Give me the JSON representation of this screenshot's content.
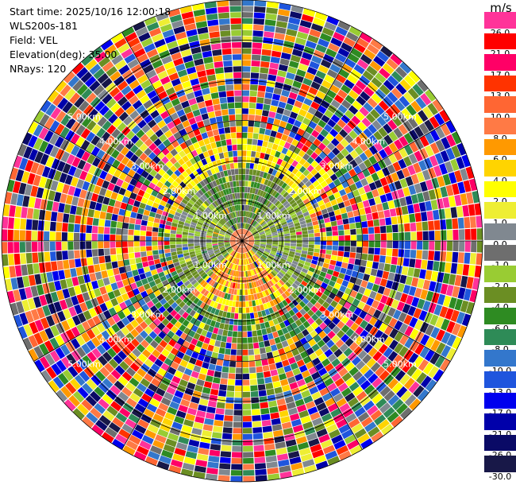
{
  "info": {
    "start_time": "Start time: 2025/10/16 12:00:18",
    "instrument": "WLS200s-181",
    "field": "Field: VEL",
    "elevation": "Elevation(deg): 35.00",
    "nrays": "NRays: 120"
  },
  "colorbar": {
    "unit": "m/s",
    "levels": [
      {
        "label": "26.0",
        "color": "#ff3399"
      },
      {
        "label": "21.0",
        "color": "#ff0000"
      },
      {
        "label": "17.0",
        "color": "#ff0066"
      },
      {
        "label": "13.0",
        "color": "#ff3300"
      },
      {
        "label": "10.0",
        "color": "#ff6633"
      },
      {
        "label": "8.0",
        "color": "#ff7a45"
      },
      {
        "label": "6.0",
        "color": "#ff9900"
      },
      {
        "label": "4.0",
        "color": "#ffd400"
      },
      {
        "label": "2.0",
        "color": "#ffff00"
      },
      {
        "label": "1.0",
        "color": "#eeee33"
      },
      {
        "label": "0.0",
        "color": "#808890"
      },
      {
        "label": "-1.0",
        "color": "#6e6e6e"
      },
      {
        "label": "-2.0",
        "color": "#99cc33"
      },
      {
        "label": "-4.0",
        "color": "#6b8e23"
      },
      {
        "label": "-6.0",
        "color": "#2e8b22"
      },
      {
        "label": "-8.0",
        "color": "#2e8b57"
      },
      {
        "label": "-10.0",
        "color": "#3377cc"
      },
      {
        "label": "-13.0",
        "color": "#1f55dd"
      },
      {
        "label": "-17.0",
        "color": "#0000ee"
      },
      {
        "label": "-21.0",
        "color": "#0000aa"
      },
      {
        "label": "-26.0",
        "color": "#0a0a66"
      },
      {
        "label": "-30.0",
        "color": "#181848"
      }
    ]
  },
  "chart_data": {
    "type": "heatmap",
    "projection": "polar PPI",
    "field": "VEL",
    "units": "m/s",
    "nrays": 120,
    "elevation_deg": 35.0,
    "max_range_km": 6.0,
    "range_rings_km": [
      1.0,
      2.0,
      3.0,
      4.0,
      5.0,
      6.0
    ],
    "ring_labels": [
      "1.00km",
      "2.00km",
      "3.00km",
      "4.00km",
      "5.00km"
    ],
    "spoke_angles_deg": [
      0,
      30,
      60,
      90,
      120,
      150,
      180,
      210,
      240,
      270,
      300,
      330
    ],
    "near_range_pattern": [
      {
        "sector": "north",
        "dominant_values": [
          "-4.0",
          "-6.0",
          "-1.0"
        ]
      },
      {
        "sector": "south",
        "dominant_values": [
          "8.0",
          "6.0",
          "2.0"
        ]
      },
      {
        "sector": "east-west",
        "dominant_values": [
          "-2.0",
          "-4.0",
          "0.0"
        ]
      },
      {
        "sector": "mid-range north",
        "dominant_values": [
          "2.0",
          "4.0"
        ]
      }
    ],
    "far_range": "noise across the full colour scale",
    "grid": true
  }
}
